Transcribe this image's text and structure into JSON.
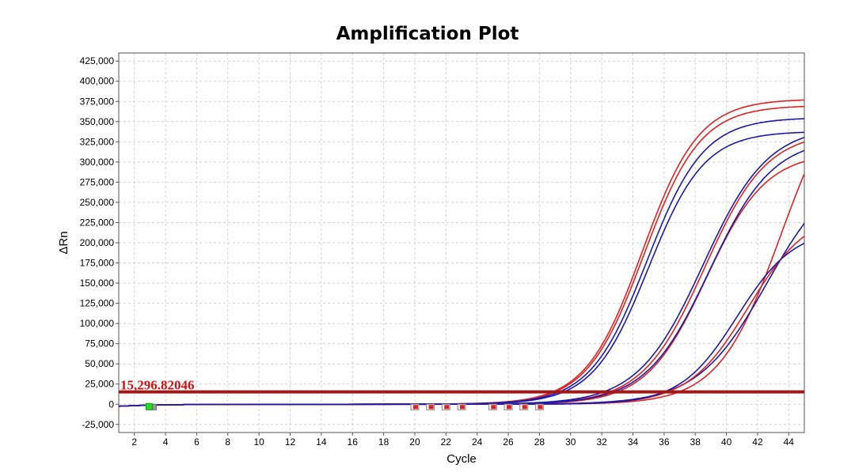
{
  "chart_data": {
    "type": "line",
    "title": "Amplification Plot",
    "xlabel": "Cycle",
    "ylabel": "ΔRn",
    "xlim": [
      1,
      45
    ],
    "ylim": [
      -35000,
      435000
    ],
    "x_ticks": [
      2,
      4,
      6,
      8,
      10,
      12,
      14,
      16,
      18,
      20,
      22,
      24,
      26,
      28,
      30,
      32,
      34,
      36,
      38,
      40,
      42,
      44
    ],
    "y_ticks": [
      -25000,
      0,
      25000,
      50000,
      75000,
      100000,
      125000,
      150000,
      175000,
      200000,
      225000,
      250000,
      275000,
      300000,
      325000,
      350000,
      375000,
      400000,
      425000
    ],
    "grid": true,
    "threshold": {
      "value": 15296.82046,
      "label": "15,296.82046",
      "color": "#a01818"
    },
    "series_colors": {
      "red": "#dd2222",
      "blue": "#1a1aaa"
    },
    "baseline_markers": {
      "green": {
        "x": 3,
        "color": "#22dd22"
      },
      "red_gray": [
        20,
        21,
        22,
        23,
        25,
        26,
        27,
        28
      ]
    },
    "series": [
      {
        "color": "red",
        "plateau": 378000,
        "mid": 34.6,
        "slope": 0.55
      },
      {
        "color": "red",
        "plateau": 370000,
        "mid": 34.7,
        "slope": 0.55
      },
      {
        "color": "blue",
        "plateau": 355000,
        "mid": 34.9,
        "slope": 0.55
      },
      {
        "color": "blue",
        "plateau": 338000,
        "mid": 35.0,
        "slope": 0.56
      },
      {
        "color": "red",
        "plateau": 338000,
        "mid": 38.6,
        "slope": 0.5
      },
      {
        "color": "blue",
        "plateau": 345000,
        "mid": 38.5,
        "slope": 0.48
      },
      {
        "color": "red",
        "plateau": 312000,
        "mid": 38.7,
        "slope": 0.52
      },
      {
        "color": "blue",
        "plateau": 330000,
        "mid": 38.9,
        "slope": 0.49
      },
      {
        "color": "red",
        "plateau": 420000,
        "mid": 43.5,
        "slope": 0.5
      },
      {
        "color": "blue",
        "plateau": 300000,
        "mid": 42.6,
        "slope": 0.45
      },
      {
        "color": "red",
        "plateau": 240000,
        "mid": 41.4,
        "slope": 0.52
      },
      {
        "color": "blue",
        "plateau": 218000,
        "mid": 40.7,
        "slope": 0.55
      }
    ]
  }
}
